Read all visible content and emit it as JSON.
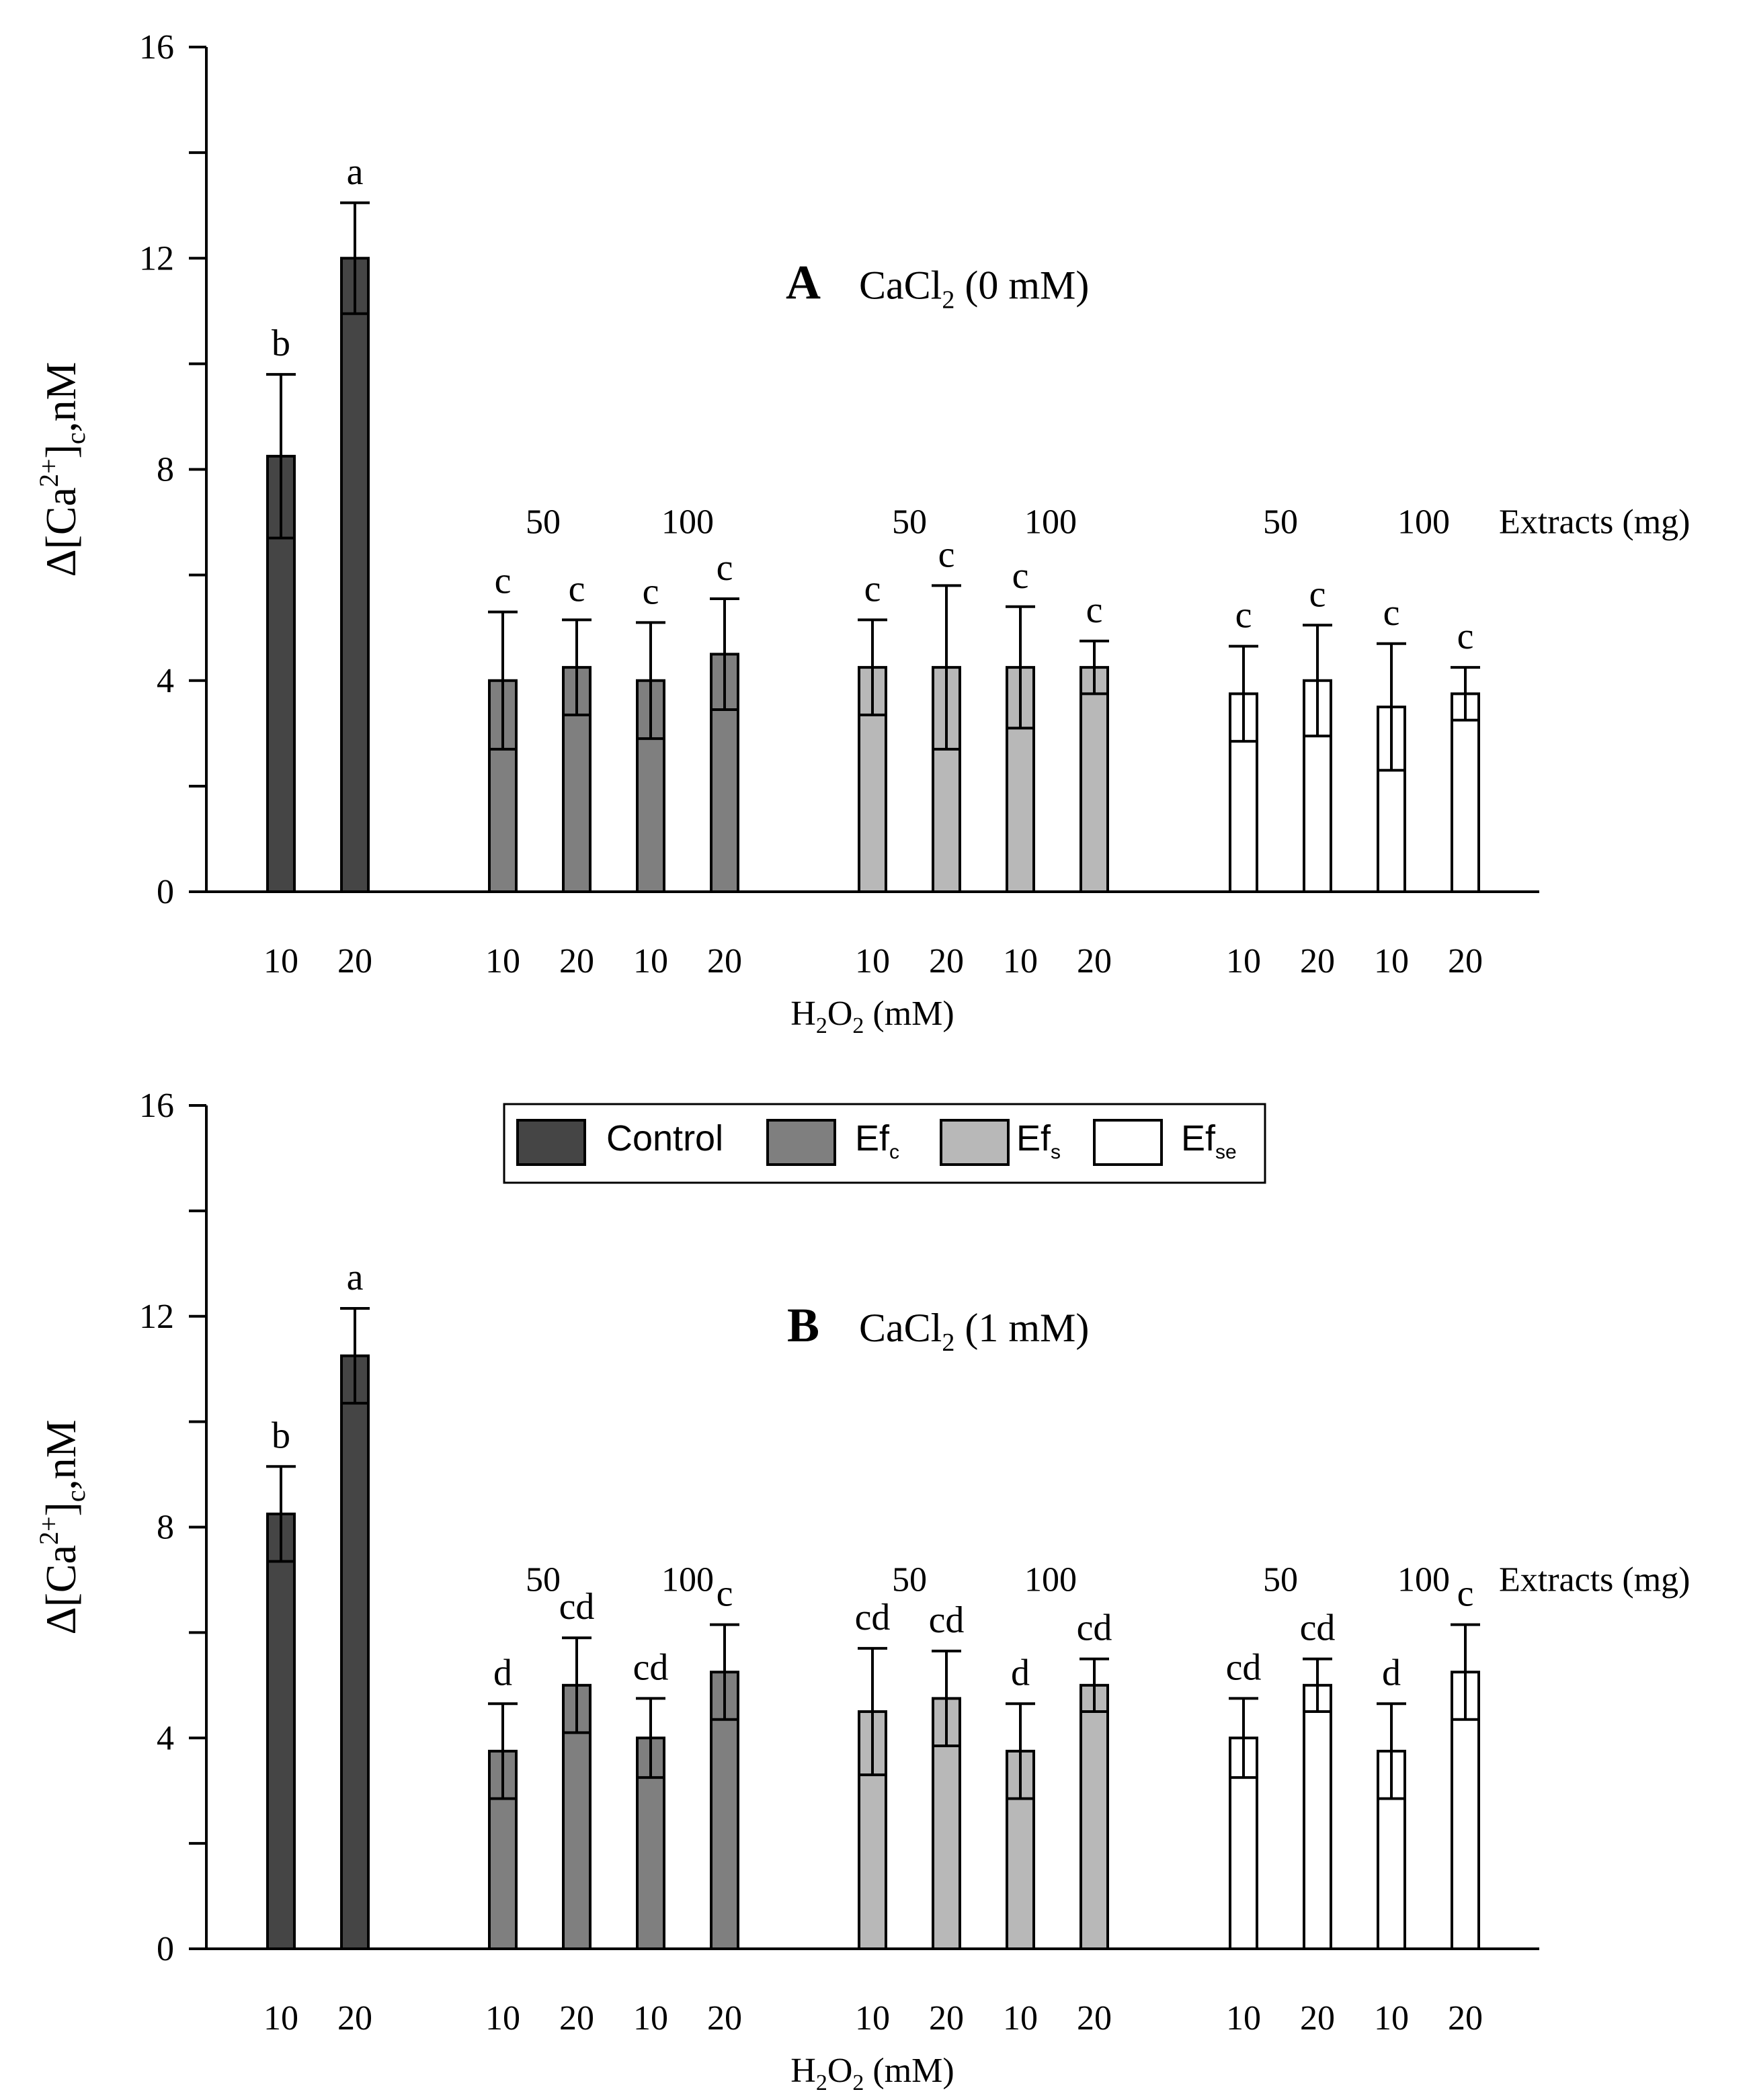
{
  "colors": {
    "Control": "#454545",
    "Efc": "#7f7f7f",
    "Efs": "#b8b8b8",
    "Efse": "#ffffff",
    "ink": "#000000"
  },
  "legend": [
    {
      "key": "Control",
      "base": "Control",
      "sub": ""
    },
    {
      "key": "Efc",
      "base": "Ef",
      "sub": "c"
    },
    {
      "key": "Efs",
      "base": "Ef",
      "sub": "s"
    },
    {
      "key": "Efse",
      "base": "Ef",
      "sub": "se"
    }
  ],
  "chart_data": [
    {
      "type": "bar",
      "panel_letter": "A",
      "title_base": "CaCl",
      "title_sub": "2",
      "title_rest": " (0 mM)",
      "ylabel": {
        "prefix": "Δ[Ca",
        "sup": "2+",
        "mid": "]",
        "sub": "c",
        "suffix": ",nM"
      },
      "xlabel": {
        "a": "H",
        "sub1": "2",
        "b": "O",
        "sub2": "2",
        "c": " (mM)"
      },
      "ylim": [
        0,
        16
      ],
      "yticks": [
        0,
        4,
        8,
        12,
        16
      ],
      "extracts_label": "Extracts (mg)",
      "extract_doses": [
        "50",
        "100",
        "50",
        "100",
        "50",
        "100"
      ],
      "categories": [
        "10",
        "20",
        "10",
        "20",
        "10",
        "20",
        "10",
        "20",
        "10",
        "20",
        "10",
        "20",
        "10",
        "20"
      ],
      "series": [
        "Control",
        "Control",
        "Efc",
        "Efc",
        "Efc",
        "Efc",
        "Efs",
        "Efs",
        "Efs",
        "Efs",
        "Efse",
        "Efse",
        "Efse",
        "Efse"
      ],
      "values": [
        8.25,
        12.0,
        4.0,
        4.25,
        4.0,
        4.5,
        4.25,
        4.25,
        4.25,
        4.25,
        3.75,
        4.0,
        3.5,
        3.75
      ],
      "errors": [
        1.55,
        1.05,
        1.3,
        0.9,
        1.1,
        1.05,
        0.9,
        1.55,
        1.15,
        0.5,
        0.9,
        1.05,
        1.2,
        0.5
      ],
      "significance": [
        "b",
        "a",
        "c",
        "c",
        "c",
        "c",
        "c",
        "c",
        "c",
        "c",
        "c",
        "c",
        "c",
        "c"
      ]
    },
    {
      "type": "bar",
      "panel_letter": "B",
      "title_base": "CaCl",
      "title_sub": "2",
      "title_rest": " (1 mM)",
      "ylabel": {
        "prefix": "Δ[Ca",
        "sup": "2+",
        "mid": "]",
        "sub": "c",
        "suffix": ",nM"
      },
      "xlabel": {
        "a": "H",
        "sub1": "2",
        "b": "O",
        "sub2": "2",
        "c": " (mM)"
      },
      "ylim": [
        0,
        16
      ],
      "yticks": [
        0,
        4,
        8,
        12,
        16
      ],
      "extracts_label": "Extracts (mg)",
      "extract_doses": [
        "50",
        "100",
        "50",
        "100",
        "50",
        "100"
      ],
      "categories": [
        "10",
        "20",
        "10",
        "20",
        "10",
        "20",
        "10",
        "20",
        "10",
        "20",
        "10",
        "20",
        "10",
        "20"
      ],
      "series": [
        "Control",
        "Control",
        "Efc",
        "Efc",
        "Efc",
        "Efc",
        "Efs",
        "Efs",
        "Efs",
        "Efs",
        "Efse",
        "Efse",
        "Efse",
        "Efse"
      ],
      "values": [
        8.25,
        11.25,
        3.75,
        5.0,
        4.0,
        5.25,
        4.5,
        4.75,
        3.75,
        5.0,
        4.0,
        5.0,
        3.75,
        5.25
      ],
      "errors": [
        0.9,
        0.9,
        0.9,
        0.9,
        0.75,
        0.9,
        1.2,
        0.9,
        0.9,
        0.5,
        0.75,
        0.5,
        0.9,
        0.9
      ],
      "significance": [
        "b",
        "a",
        "d",
        "cd",
        "cd",
        "c",
        "cd",
        "cd",
        "d",
        "cd",
        "cd",
        "cd",
        "d",
        "c"
      ]
    }
  ]
}
